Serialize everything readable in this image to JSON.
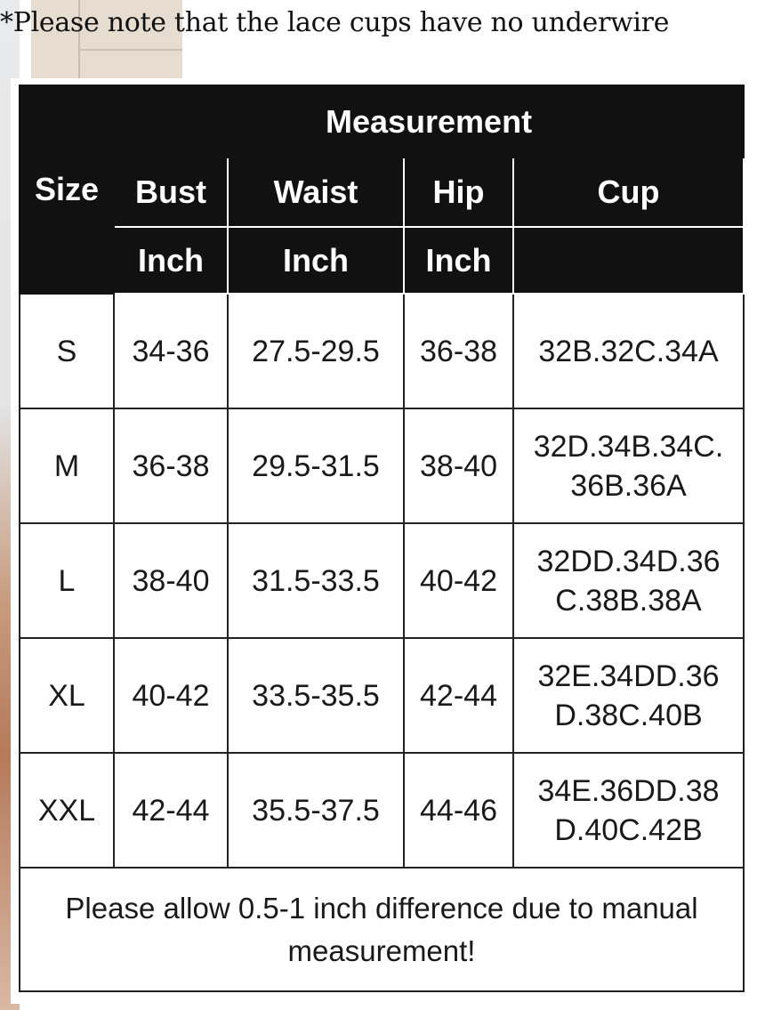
{
  "note": "*Please note that the lace cups have no underwire",
  "table": {
    "header": {
      "size": "Size",
      "group": "Measurement",
      "columns": [
        "Bust",
        "Waist",
        "Hip",
        "Cup"
      ],
      "units": [
        "Inch",
        "Inch",
        "Inch",
        ""
      ]
    },
    "rows": [
      {
        "size": "S",
        "bust": "34-36",
        "waist": "27.5-29.5",
        "hip": "36-38",
        "cup": "32B.32C.34A"
      },
      {
        "size": "M",
        "bust": "36-38",
        "waist": "29.5-31.5",
        "hip": "38-40",
        "cup": "32D.34B.34C.\n36B.36A"
      },
      {
        "size": "L",
        "bust": "38-40",
        "waist": "31.5-33.5",
        "hip": "40-42",
        "cup": "32DD.34D.36\nC.38B.38A"
      },
      {
        "size": "XL",
        "bust": "40-42",
        "waist": "33.5-35.5",
        "hip": "42-44",
        "cup": "32E.34DD.36\nD.38C.40B"
      },
      {
        "size": "XXL",
        "bust": "42-44",
        "waist": "35.5-37.5",
        "hip": "44-46",
        "cup": "34E.36DD.38\nD.40C.42B"
      }
    ],
    "footer": "Please allow 0.5-1 inch difference due to manual measurement!"
  }
}
